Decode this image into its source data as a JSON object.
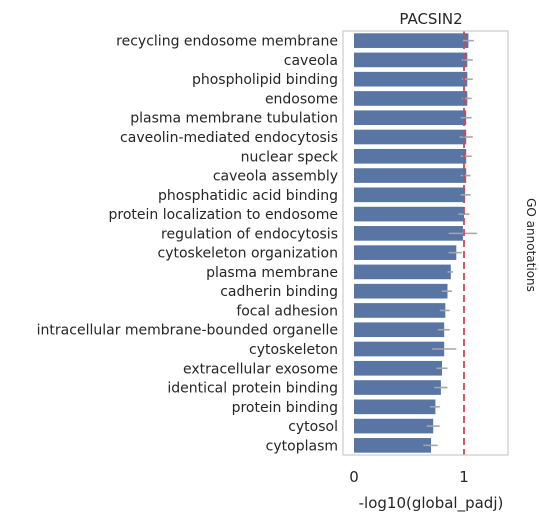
{
  "chart_data": {
    "type": "bar",
    "orientation": "horizontal",
    "title": "PACSIN2",
    "xlabel": "-log10(global_padj)",
    "ylabel": "",
    "side_label": "GO annotations",
    "xlim": [
      0,
      1.4
    ],
    "xticks": [
      0,
      1
    ],
    "xtick_labels": [
      "0",
      "1"
    ],
    "reference_line": {
      "x": 1.0,
      "color": "#c44e52",
      "style": "dashed"
    },
    "bar_color": "#5875a4",
    "error_color": "#a6a6a6",
    "grid": false,
    "categories": [
      "recycling endosome membrane",
      "caveola",
      "phospholipid binding",
      "endosome",
      "plasma membrane tubulation",
      "caveolin-mediated endocytosis",
      "nuclear speck",
      "caveola assembly",
      "phosphatidic acid binding",
      "protein localization to endosome",
      "regulation of endocytosis",
      "cytoskeleton organization",
      "plasma membrane",
      "cadherin binding",
      "focal adhesion",
      "intracellular membrane-bounded organelle",
      "cytoskeleton",
      "extracellular exosome",
      "identical protein binding",
      "protein binding",
      "cytosol",
      "cytoplasm"
    ],
    "values": [
      1.04,
      1.03,
      1.03,
      1.03,
      1.02,
      1.02,
      1.02,
      1.02,
      1.01,
      1.0,
      0.99,
      0.93,
      0.88,
      0.85,
      0.83,
      0.82,
      0.82,
      0.8,
      0.79,
      0.74,
      0.72,
      0.7
    ],
    "error_low": [
      0.99,
      0.98,
      0.98,
      0.98,
      0.97,
      0.96,
      0.97,
      0.97,
      0.97,
      0.95,
      0.86,
      0.86,
      0.85,
      0.8,
      0.78,
      0.76,
      0.71,
      0.75,
      0.73,
      0.69,
      0.66,
      0.63
    ],
    "error_high": [
      1.09,
      1.08,
      1.08,
      1.07,
      1.07,
      1.08,
      1.07,
      1.06,
      1.06,
      1.05,
      1.12,
      0.98,
      0.9,
      0.89,
      0.87,
      0.87,
      0.93,
      0.85,
      0.85,
      0.78,
      0.78,
      0.76
    ]
  }
}
